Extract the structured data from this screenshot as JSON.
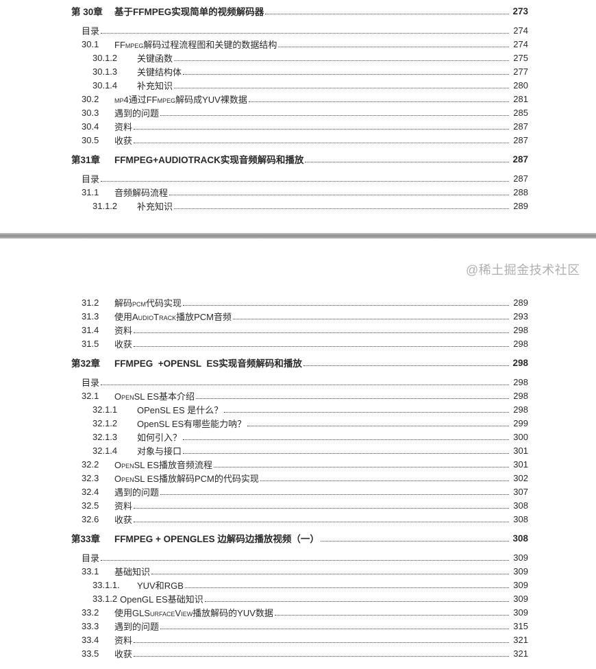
{
  "page1": [
    {
      "kind": "chapter",
      "num": "第 30章",
      "title": "基于FFMPEG实现简单的视频解码器",
      "page": "273"
    },
    {
      "kind": "l0",
      "num": "",
      "title": "目录",
      "page": "274"
    },
    {
      "kind": "l1",
      "num": "30.1",
      "title": "FFmpeg解码过程流程图和关键的数据结构",
      "page": "274",
      "sc": true
    },
    {
      "kind": "l2",
      "num": "30.1.2",
      "title": "关键函数",
      "page": "275"
    },
    {
      "kind": "l2",
      "num": "30.1.3",
      "title": "关键结构体",
      "page": "277"
    },
    {
      "kind": "l2",
      "num": "30.1.4",
      "title": "补充知识",
      "page": "280"
    },
    {
      "kind": "l1",
      "num": "30.2",
      "title": "mp4通过FFmpeg解码成YUV裸数据",
      "page": "281",
      "sc": true
    },
    {
      "kind": "l1",
      "num": "30.3",
      "title": "遇到的问题",
      "page": "285"
    },
    {
      "kind": "l1",
      "num": "30.4",
      "title": "资料",
      "page": "287"
    },
    {
      "kind": "l1",
      "num": "30.5",
      "title": "收获",
      "page": "287"
    },
    {
      "kind": "chapter",
      "num": "第31章",
      "title": "FFMPEG+AUDIOTRACK实现音频解码和播放",
      "page": "287"
    },
    {
      "kind": "l0",
      "num": "",
      "title": "目录",
      "page": "287"
    },
    {
      "kind": "l1",
      "num": "31.1",
      "title": "音频解码流程",
      "page": "288"
    },
    {
      "kind": "l2",
      "num": "31.1.2",
      "title": "补充知识",
      "page": "289"
    }
  ],
  "page2": [
    {
      "kind": "l1",
      "num": "31.2",
      "title": "解码pcm代码实现",
      "page": "289",
      "sc": true
    },
    {
      "kind": "l1",
      "num": "31.3",
      "title": "使用AudioTrack播放PCM音频",
      "page": "293",
      "sc": true
    },
    {
      "kind": "l1",
      "num": "31.4",
      "title": "资料",
      "page": "298"
    },
    {
      "kind": "l1",
      "num": "31.5",
      "title": "收获",
      "page": "298"
    },
    {
      "kind": "chapter",
      "num": "第32章",
      "title": "FFMPEG  +OPENSL  ES实现音频解码和播放",
      "page": "298"
    },
    {
      "kind": "l0",
      "num": "",
      "title": "目录",
      "page": "298"
    },
    {
      "kind": "l1",
      "num": "32.1",
      "title": "OpenSL ES基本介绍",
      "page": "298",
      "sc": true
    },
    {
      "kind": "l2",
      "num": "32.1.1",
      "title": "OPenSL ES 是什么？",
      "page": "298"
    },
    {
      "kind": "l2",
      "num": "32.1.2",
      "title": "OpenSL ES有哪些能力呐？",
      "page": "299"
    },
    {
      "kind": "l2",
      "num": "32.1.3",
      "title": "如何引入？",
      "page": "300"
    },
    {
      "kind": "l2",
      "num": "32.1.4",
      "title": "对象与接口",
      "page": "301"
    },
    {
      "kind": "l1",
      "num": "32.2",
      "title": "OpenSL ES播放音频流程",
      "page": "301",
      "sc": true
    },
    {
      "kind": "l1",
      "num": "32.3",
      "title": "OpenSL ES播放解码PCM的代码实现",
      "page": "302",
      "sc": true
    },
    {
      "kind": "l1",
      "num": "32.4",
      "title": "遇到的问题",
      "page": "307"
    },
    {
      "kind": "l1",
      "num": "32.5",
      "title": "资料",
      "page": "308"
    },
    {
      "kind": "l1",
      "num": "32.6",
      "title": "收获",
      "page": "308"
    },
    {
      "kind": "chapter",
      "num": "第33章",
      "title": "FFMPEG + OPENGLES 边解码边播放视频（一）",
      "page": "308"
    },
    {
      "kind": "l0",
      "num": "",
      "title": "目录",
      "page": "309"
    },
    {
      "kind": "l1",
      "num": "33.1",
      "title": "基础知识",
      "page": "309"
    },
    {
      "kind": "l2",
      "num": "33.1.1.",
      "title": "YUV和RGB",
      "page": "309"
    },
    {
      "kind": "l2",
      "num": "33.1.2",
      "title": "OpenGL ES基础知识",
      "page": "309",
      "tight": true
    },
    {
      "kind": "l1",
      "num": "33.2",
      "title": "使用GLSurfaceView播放解码的YUV数据",
      "page": "309",
      "sc": true
    },
    {
      "kind": "l1",
      "num": "33.3",
      "title": "遇到的问题",
      "page": "315"
    },
    {
      "kind": "l1",
      "num": "33.4",
      "title": "资料",
      "page": "321"
    },
    {
      "kind": "l1",
      "num": "33.5",
      "title": "收获",
      "page": "321"
    }
  ],
  "watermark": "@稀土掘金技术社区"
}
